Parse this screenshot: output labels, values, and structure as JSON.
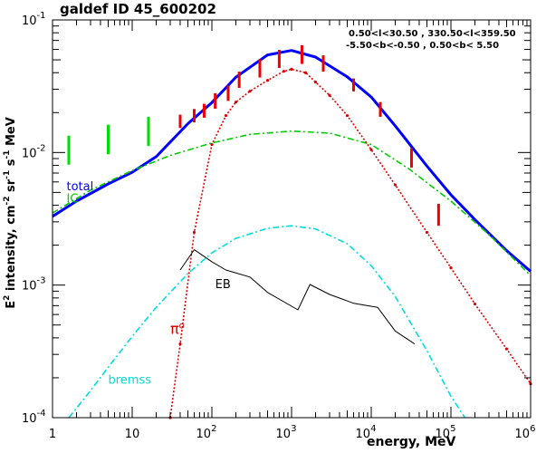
{
  "chart_data": {
    "type": "line",
    "title": "galdef ID 45_600202",
    "region_lines": [
      "0.50<l<30.50 , 330.50<l<359.50",
      "-5.50<b<-0.50 , 0.50<b< 5.50"
    ],
    "ylabel_main": "E",
    "ylabel_sup": "2",
    "ylabel_rest": " intensity, cm",
    "ylabel_sup2": "-2",
    "ylabel_sr": " sr",
    "ylabel_sup3": "-1",
    "ylabel_s": " s",
    "ylabel_sup4": "-1",
    "ylabel_mev": " MeV",
    "xlabel": "energy, MeV",
    "x_scale": "log",
    "y_scale": "log",
    "xlim": [
      1,
      1000000
    ],
    "ylim": [
      0.0001,
      0.1
    ],
    "x_ticks": [
      {
        "base": "1",
        "exp": ""
      },
      {
        "base": "10",
        "exp": ""
      },
      {
        "base": "10",
        "exp": "2"
      },
      {
        "base": "10",
        "exp": "3"
      },
      {
        "base": "10",
        "exp": "4"
      },
      {
        "base": "10",
        "exp": "5"
      },
      {
        "base": "10",
        "exp": "6"
      }
    ],
    "y_ticks": [
      {
        "base": "10",
        "exp": "-4"
      },
      {
        "base": "10",
        "exp": "-3"
      },
      {
        "base": "10",
        "exp": "-2"
      },
      {
        "base": "10",
        "exp": "-1"
      }
    ],
    "series": [
      {
        "name": "total",
        "color": "#0000ff",
        "style": "solid",
        "x": [
          1,
          2,
          5,
          10,
          20,
          50,
          100,
          200,
          500,
          1000,
          2000,
          5000,
          10000,
          20000,
          50000,
          100000,
          200000,
          500000,
          1000000
        ],
        "y": [
          0.0033,
          0.0043,
          0.0058,
          0.0071,
          0.0093,
          0.0165,
          0.0238,
          0.037,
          0.0545,
          0.0588,
          0.0525,
          0.0372,
          0.0262,
          0.0159,
          0.0079,
          0.0048,
          0.00312,
          0.00182,
          0.00127
        ]
      },
      {
        "name": "IC",
        "color": "#00cc00",
        "style": "dashdot",
        "x": [
          1,
          3,
          10,
          30,
          100,
          300,
          1000,
          3000,
          10000,
          30000,
          100000,
          300000,
          1000000
        ],
        "y": [
          0.0035,
          0.0052,
          0.0073,
          0.0095,
          0.0118,
          0.0137,
          0.0145,
          0.014,
          0.0115,
          0.0075,
          0.0043,
          0.0024,
          0.00118
        ]
      },
      {
        "name": "π",
        "name_sup": "o",
        "color": "#dd0000",
        "style": "dotted",
        "x": [
          30,
          40,
          60,
          100,
          150,
          200,
          300,
          500,
          800,
          1000,
          1500,
          2000,
          3000,
          5000,
          10000,
          20000,
          50000,
          100000,
          200000,
          500000,
          1000000
        ],
        "y": [
          0.0001,
          0.00036,
          0.0025,
          0.0115,
          0.019,
          0.024,
          0.029,
          0.035,
          0.041,
          0.0425,
          0.04,
          0.034,
          0.027,
          0.019,
          0.0105,
          0.0057,
          0.0025,
          0.00135,
          0.00072,
          0.00033,
          0.00018
        ]
      },
      {
        "name": "bremss",
        "color": "#00dddd",
        "style": "dashdot",
        "x": [
          1.6,
          2,
          3,
          5,
          10,
          20,
          50,
          100,
          200,
          500,
          1000,
          2000,
          5000,
          10000,
          20000,
          50000,
          100000,
          150000
        ],
        "y": [
          0.0001,
          0.000118,
          0.00016,
          0.00024,
          0.00041,
          0.00068,
          0.00122,
          0.00175,
          0.00225,
          0.00268,
          0.0028,
          0.00265,
          0.00205,
          0.0014,
          0.00082,
          0.00032,
          0.000145,
          0.0001
        ]
      },
      {
        "name": "EB",
        "color": "#000000",
        "style": "solid",
        "x": [
          40,
          60,
          100,
          150,
          300,
          500,
          1200,
          1700,
          3000,
          6000,
          12000,
          20000,
          35000
        ],
        "y": [
          0.0013,
          0.00185,
          0.0015,
          0.0013,
          0.00115,
          0.00088,
          0.00065,
          0.00101,
          0.00085,
          0.00073,
          0.00068,
          0.00045,
          0.00036
        ]
      }
    ],
    "data_points_green": [
      {
        "x": 1.6,
        "ylo": 0.0081,
        "yhi": 0.0134
      },
      {
        "x": 5,
        "ylo": 0.0097,
        "yhi": 0.0162
      },
      {
        "x": 16,
        "ylo": 0.0112,
        "yhi": 0.0186
      }
    ],
    "data_points_red": [
      {
        "x": 40,
        "ylo": 0.0153,
        "yhi": 0.0193
      },
      {
        "x": 60,
        "ylo": 0.0169,
        "yhi": 0.0213
      },
      {
        "x": 80,
        "ylo": 0.0183,
        "yhi": 0.0233
      },
      {
        "x": 110,
        "ylo": 0.0214,
        "yhi": 0.028
      },
      {
        "x": 160,
        "ylo": 0.0245,
        "yhi": 0.032
      },
      {
        "x": 220,
        "ylo": 0.0307,
        "yhi": 0.0407
      },
      {
        "x": 400,
        "ylo": 0.0368,
        "yhi": 0.0505
      },
      {
        "x": 700,
        "ylo": 0.0434,
        "yhi": 0.0595
      },
      {
        "x": 1350,
        "ylo": 0.0466,
        "yhi": 0.0644
      },
      {
        "x": 2500,
        "ylo": 0.0408,
        "yhi": 0.0541
      },
      {
        "x": 6000,
        "ylo": 0.0289,
        "yhi": 0.0362
      },
      {
        "x": 13000,
        "ylo": 0.0186,
        "yhi": 0.024
      },
      {
        "x": 32000,
        "ylo": 0.0077,
        "yhi": 0.0108
      },
      {
        "x": 70000,
        "ylo": 0.0028,
        "yhi": 0.0041
      }
    ],
    "annotations": [
      {
        "text": "total",
        "color": "#0000ff",
        "x": 1.5,
        "y": 0.0052
      },
      {
        "text": "IC",
        "color": "#00cc00",
        "x": 1.5,
        "y": 0.0042
      },
      {
        "text": "EB",
        "color": "#000000",
        "x": 110,
        "y": 0.00095
      },
      {
        "text": "π",
        "sup": "o",
        "color": "#dd0000",
        "x": 30,
        "y": 0.00043
      },
      {
        "text": "bremss",
        "color": "#00dddd",
        "x": 5,
        "y": 0.00018
      }
    ]
  }
}
